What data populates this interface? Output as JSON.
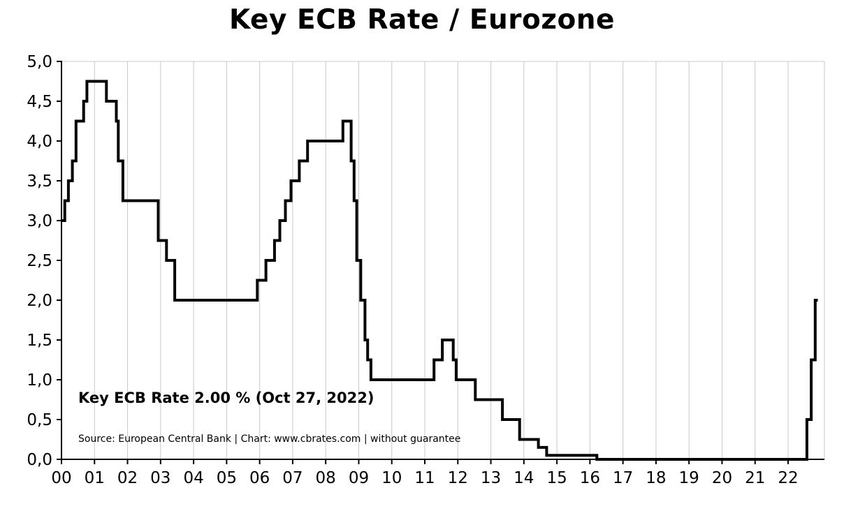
{
  "title": "Key ECB Rate / Eurozone",
  "annotation": {
    "current_rate_label": "Key ECB Rate 2.00 % (Oct 27, 2022)",
    "source_label": "Source: European Central Bank | Chart: www.cbrates.com | without guarantee"
  },
  "chart_data": {
    "type": "line",
    "step": "after",
    "title": "Key ECB Rate / Eurozone",
    "xlabel": "",
    "ylabel": "",
    "xlim": [
      2000,
      2023.1
    ],
    "ylim": [
      0,
      5
    ],
    "grid": "vertical-year-lines",
    "legend": "none",
    "line_color": "#000000",
    "grid_color": "#c9c9c9",
    "x_ticks": [
      2000,
      2001,
      2002,
      2003,
      2004,
      2005,
      2006,
      2007,
      2008,
      2009,
      2010,
      2011,
      2012,
      2013,
      2014,
      2015,
      2016,
      2017,
      2018,
      2019,
      2020,
      2021,
      2022
    ],
    "x_tick_labels": [
      "00",
      "01",
      "02",
      "03",
      "04",
      "05",
      "06",
      "07",
      "08",
      "09",
      "10",
      "11",
      "12",
      "13",
      "14",
      "15",
      "16",
      "17",
      "18",
      "19",
      "20",
      "21",
      "22"
    ],
    "y_ticks": [
      0,
      0.5,
      1,
      1.5,
      2,
      2.5,
      3,
      3.5,
      4,
      4.5,
      5
    ],
    "y_tick_labels": [
      "0,0",
      "0,5",
      "1,0",
      "1,5",
      "2,0",
      "2,5",
      "3,0",
      "3,5",
      "4,0",
      "4,5",
      "5,0"
    ],
    "series": [
      {
        "name": "Key ECB Rate (%)",
        "points": [
          [
            2000.0,
            3.0
          ],
          [
            2000.1,
            3.25
          ],
          [
            2000.21,
            3.5
          ],
          [
            2000.33,
            3.75
          ],
          [
            2000.44,
            4.25
          ],
          [
            2000.67,
            4.5
          ],
          [
            2000.77,
            4.75
          ],
          [
            2001.36,
            4.5
          ],
          [
            2001.66,
            4.25
          ],
          [
            2001.72,
            3.75
          ],
          [
            2001.86,
            3.25
          ],
          [
            2002.93,
            2.75
          ],
          [
            2003.18,
            2.5
          ],
          [
            2003.43,
            2.0
          ],
          [
            2005.93,
            2.25
          ],
          [
            2006.19,
            2.5
          ],
          [
            2006.45,
            2.75
          ],
          [
            2006.61,
            3.0
          ],
          [
            2006.78,
            3.25
          ],
          [
            2006.95,
            3.5
          ],
          [
            2007.2,
            3.75
          ],
          [
            2007.45,
            4.0
          ],
          [
            2008.52,
            4.25
          ],
          [
            2008.77,
            3.75
          ],
          [
            2008.86,
            3.25
          ],
          [
            2008.94,
            2.5
          ],
          [
            2009.06,
            2.0
          ],
          [
            2009.19,
            1.5
          ],
          [
            2009.27,
            1.25
          ],
          [
            2009.37,
            1.0
          ],
          [
            2011.28,
            1.25
          ],
          [
            2011.53,
            1.5
          ],
          [
            2011.86,
            1.25
          ],
          [
            2011.95,
            1.0
          ],
          [
            2012.53,
            0.75
          ],
          [
            2013.35,
            0.5
          ],
          [
            2013.87,
            0.25
          ],
          [
            2014.44,
            0.15
          ],
          [
            2014.69,
            0.05
          ],
          [
            2016.21,
            0.0
          ],
          [
            2022.57,
            0.5
          ],
          [
            2022.7,
            1.25
          ],
          [
            2022.82,
            2.0
          ],
          [
            2022.9,
            2.0
          ]
        ]
      }
    ]
  }
}
